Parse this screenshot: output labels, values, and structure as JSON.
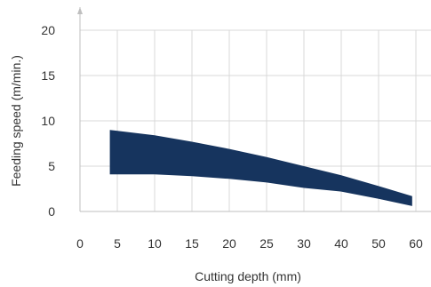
{
  "chart_data": {
    "type": "area",
    "xlabel": "Cutting depth (mm)",
    "ylabel": "Feeding speed (m/min.)",
    "xlim": [
      0,
      60
    ],
    "ylim": [
      0,
      20
    ],
    "x_ticks": [
      "0",
      "5",
      "10",
      "15",
      "20",
      "25",
      "30",
      "40",
      "50",
      "60"
    ],
    "y_ticks": [
      "0",
      "5",
      "10",
      "15",
      "20"
    ],
    "grid": true,
    "band": {
      "x": [
        4,
        10,
        15,
        20,
        25,
        30,
        40,
        50,
        59
      ],
      "upper": [
        9.0,
        8.4,
        7.7,
        6.9,
        6.0,
        5.0,
        4.0,
        2.8,
        1.7
      ],
      "lower": [
        4.1,
        4.1,
        3.9,
        3.6,
        3.2,
        2.6,
        2.2,
        1.4,
        0.6
      ]
    },
    "colors": {
      "band": "#16345e",
      "grid": "#d9d9d9",
      "axis": "#bfbfbf"
    }
  }
}
